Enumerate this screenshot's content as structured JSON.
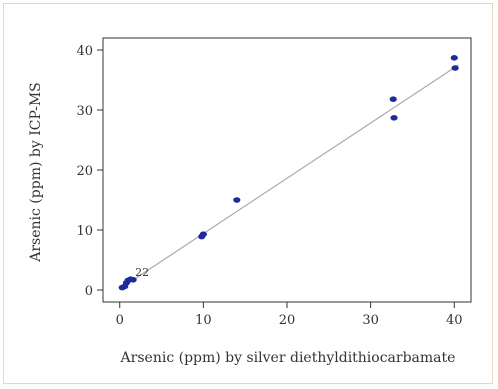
{
  "chart_data": {
    "type": "scatter",
    "title": "",
    "xlabel": "Arsenic (ppm) by silver diethyldithiocarbamate",
    "ylabel": "Arsenic (ppm) by ICP-MS",
    "xlim": [
      -2,
      42
    ],
    "ylim": [
      -2,
      42
    ],
    "xticks": [
      0,
      10,
      20,
      30,
      40
    ],
    "yticks": [
      0,
      10,
      20,
      30,
      40
    ],
    "grid": false,
    "series": [
      {
        "color": "#1f2a9e",
        "points": [
          [
            0.3,
            0.4
          ],
          [
            0.6,
            0.6
          ],
          [
            0.8,
            1.2
          ],
          [
            1.0,
            1.6
          ],
          [
            1.3,
            1.8
          ],
          [
            1.6,
            1.7
          ],
          [
            9.8,
            8.9
          ],
          [
            10.0,
            9.3
          ],
          [
            14.0,
            15.0
          ],
          [
            32.7,
            31.8
          ],
          [
            32.8,
            28.7
          ],
          [
            40.0,
            38.7
          ],
          [
            40.1,
            37.0
          ]
        ]
      }
    ],
    "fit_line": {
      "x": [
        0,
        40.5
      ],
      "y": [
        0.2,
        37.5
      ],
      "color": "#aaaaaa"
    },
    "annotations": [
      {
        "text": "22",
        "x": 1.6,
        "y": 2.2
      }
    ]
  }
}
